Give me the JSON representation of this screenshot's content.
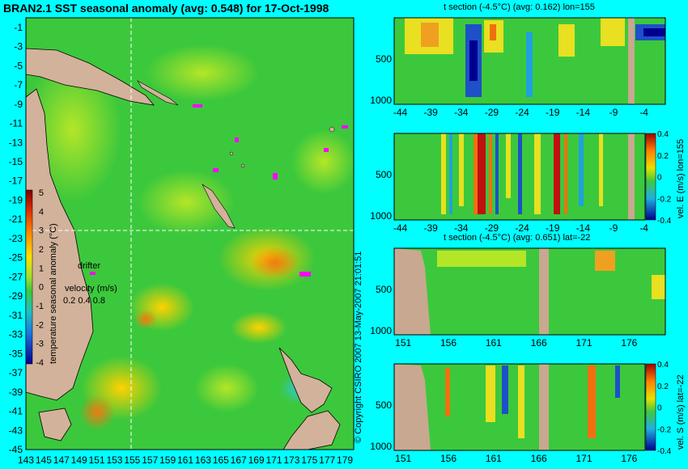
{
  "chart_data": [
    {
      "type": "heatmap",
      "title": "BRAN2.1 SST seasonal anomaly (avg: 0.548) for 17-Oct-1998",
      "x_ticks": [
        "143",
        "145",
        "147",
        "149",
        "151",
        "153",
        "155",
        "157",
        "159",
        "161",
        "163",
        "165",
        "167",
        "169",
        "171",
        "173",
        "175",
        "177",
        "179"
      ],
      "y_ticks": [
        "-1",
        "-3",
        "-5",
        "-7",
        "-9",
        "-11",
        "-13",
        "-15",
        "-17",
        "-19",
        "-21",
        "-23",
        "-25",
        "-27",
        "-29",
        "-31",
        "-33",
        "-35",
        "-37",
        "-39",
        "-41",
        "-43",
        "-45"
      ],
      "xlim": [
        143,
        180
      ],
      "ylim": [
        -45,
        0
      ],
      "section_lon": 155,
      "section_lat": -22,
      "colorbar": {
        "label": "temperature seasonal anomaly (°C)",
        "ticks": [
          "5",
          "4",
          "3",
          "2",
          "1",
          "0",
          "-1",
          "-2",
          "-3",
          "-4"
        ],
        "range": [
          -4,
          5
        ]
      },
      "annotations": {
        "drifter": "drifter",
        "velocity_label": "velocity (m/s)",
        "velocity_scale": "0.2 0.4 0.8"
      }
    },
    {
      "type": "heatmap",
      "title": "t section (-4.5°C) (avg: 0.162) lon=155",
      "x_ticks": [
        "-44",
        "-39",
        "-34",
        "-29",
        "-24",
        "-19",
        "-14",
        "-9",
        "-4"
      ],
      "y_ticks": [
        "500",
        "1000"
      ],
      "xlim": [
        -45,
        -0.5
      ],
      "ylim": [
        1050,
        0
      ]
    },
    {
      "type": "heatmap",
      "title": "",
      "x_ticks": [
        "-44",
        "-39",
        "-34",
        "-29",
        "-24",
        "-19",
        "-14",
        "-9",
        "-4"
      ],
      "y_ticks": [
        "500",
        "1000"
      ],
      "colorbar": {
        "label": "vel. E (m/s) lon=155",
        "ticks": [
          "0.4",
          "0.2",
          "0",
          "-0.2",
          "-0.4"
        ],
        "range": [
          -0.4,
          0.4
        ]
      }
    },
    {
      "type": "heatmap",
      "title": "t section (-4.5°C) (avg: 0.651) lat=-22",
      "x_ticks": [
        "151",
        "156",
        "161",
        "166",
        "171",
        "176"
      ],
      "y_ticks": [
        "500",
        "1000"
      ],
      "xlim": [
        150,
        180
      ],
      "ylim": [
        1050,
        0
      ]
    },
    {
      "type": "heatmap",
      "title": "",
      "x_ticks": [
        "151",
        "156",
        "161",
        "166",
        "171",
        "176"
      ],
      "y_ticks": [
        "500",
        "1000"
      ],
      "colorbar": {
        "label": "vel. S (m/s) lat=-22",
        "ticks": [
          "0.4",
          "0.2",
          "0",
          "-0.2",
          "-0.4"
        ],
        "range": [
          -0.4,
          0.4
        ]
      }
    }
  ],
  "copyright": "© Copyright CSIRO 2007   13-May-2007 21:01:51",
  "colors": {
    "background": "#00ffff",
    "land": "#d2b29a",
    "ocean_neutral": "#3cc83c",
    "positive": "#ff8c00",
    "negative": "#1e50c8",
    "drifter": "#ff00ff"
  }
}
